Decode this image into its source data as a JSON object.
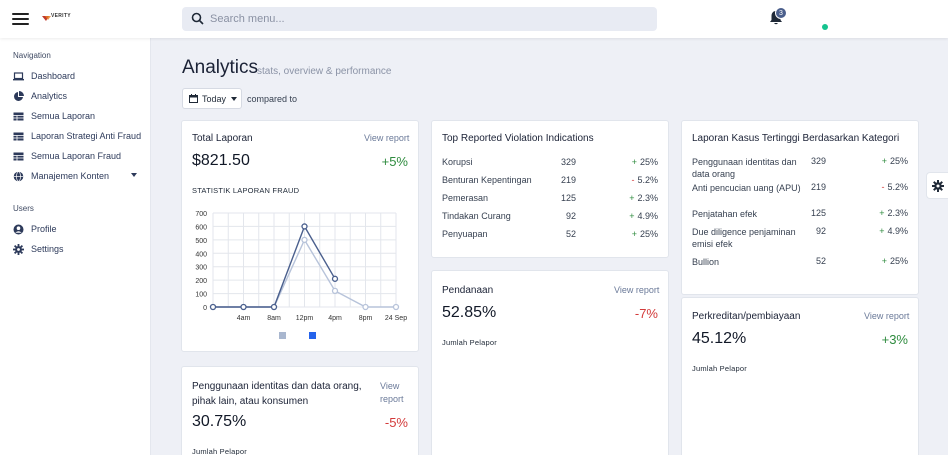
{
  "topbar": {
    "logo_text": "VERITY",
    "search_placeholder": "Search menu...",
    "notification_count": "3"
  },
  "sidebar": {
    "nav_heading": "Navigation",
    "items": [
      {
        "label": "Dashboard",
        "icon": "laptop-icon"
      },
      {
        "label": "Analytics",
        "icon": "pie-chart-icon"
      },
      {
        "label": "Semua Laporan",
        "icon": "table-icon"
      },
      {
        "label": "Laporan Strategi Anti Fraud",
        "icon": "table-icon"
      },
      {
        "label": "Semua Laporan Fraud",
        "icon": "table-icon"
      },
      {
        "label": "Manajemen Konten",
        "icon": "globe-icon"
      }
    ],
    "users_heading": "Users",
    "user_items": [
      {
        "label": "Profile",
        "icon": "user-circle-icon"
      },
      {
        "label": "Settings",
        "icon": "gear-icon"
      }
    ]
  },
  "header": {
    "title": "Analytics",
    "subtitle": "stats, overview & performance",
    "date_label": "Today",
    "compared_to": "compared to"
  },
  "total_laporan": {
    "title": "Total Laporan",
    "view_report": "View report",
    "value": "$821.50",
    "delta": "+5%",
    "chart_caption": "STATISTIK LAPORAN FRAUD"
  },
  "chart_data": {
    "type": "line",
    "title": "",
    "x": [
      "",
      "4am",
      "8am",
      "12pm",
      "4pm",
      "8pm",
      "24 Sep"
    ],
    "ylim": [
      0,
      700
    ],
    "yticks": [
      0,
      100,
      200,
      300,
      400,
      500,
      600,
      700
    ],
    "grid": true,
    "legend": "bottom",
    "series": [
      {
        "values": [
          0,
          0,
          0,
          600,
          210,
          null,
          null
        ],
        "color": "#4a5f8d"
      },
      {
        "values": [
          0,
          0,
          0,
          500,
          120,
          0,
          0
        ],
        "color": "#b7c3da"
      }
    ],
    "legend_colors": [
      "#a9b7cf",
      "#2563eb"
    ]
  },
  "violation": {
    "title": "Top Reported Violation Indications",
    "rows": [
      {
        "name": "Korupsi",
        "count": "329",
        "sign": "+",
        "pct": "25%"
      },
      {
        "name": "Benturan Kepentingan",
        "count": "219",
        "sign": "-",
        "pct": "5.2%"
      },
      {
        "name": "Pemerasan",
        "count": "125",
        "sign": "+",
        "pct": "2.3%"
      },
      {
        "name": "Tindakan Curang",
        "count": "92",
        "sign": "+",
        "pct": "4.9%"
      },
      {
        "name": "Penyuapan",
        "count": "52",
        "sign": "+",
        "pct": "25%"
      }
    ]
  },
  "kasus": {
    "title": "Laporan Kasus Tertinggi Berdasarkan Kategori",
    "rows": [
      {
        "name": "Penggunaan identitas dan data orang",
        "count": "329",
        "sign": "+",
        "pct": "25%"
      },
      {
        "name": "Anti pencucian uang (APU)",
        "count": "219",
        "sign": "-",
        "pct": "5.2%"
      },
      {
        "name": "Penjatahan efek",
        "count": "125",
        "sign": "+",
        "pct": "2.3%"
      },
      {
        "name": "Due diligence penjaminan emisi efek",
        "count": "92",
        "sign": "+",
        "pct": "4.9%"
      },
      {
        "name": "Bullion",
        "count": "52",
        "sign": "+",
        "pct": "25%"
      }
    ]
  },
  "pendanaan": {
    "title": "Pendanaan",
    "view_report": "View report",
    "value": "52.85%",
    "delta": "-7%",
    "caption": "Jumlah Pelapor"
  },
  "perkreditan": {
    "title": "Perkreditan/pembiayaan",
    "view_report": "View report",
    "value": "45.12%",
    "delta": "+3%",
    "caption": "Jumlah Pelapor"
  },
  "penggunaan": {
    "title": "Penggunaan identitas dan data orang, pihak lain, atau konsumen",
    "view_report": "View report",
    "value": "30.75%",
    "delta": "-5%",
    "caption": "Jumlah Pelapor"
  },
  "colors": {
    "accent": "#4b5f8c",
    "positive": "#2e8b3e",
    "negative": "#d33a3a",
    "online": "#14c38e"
  }
}
